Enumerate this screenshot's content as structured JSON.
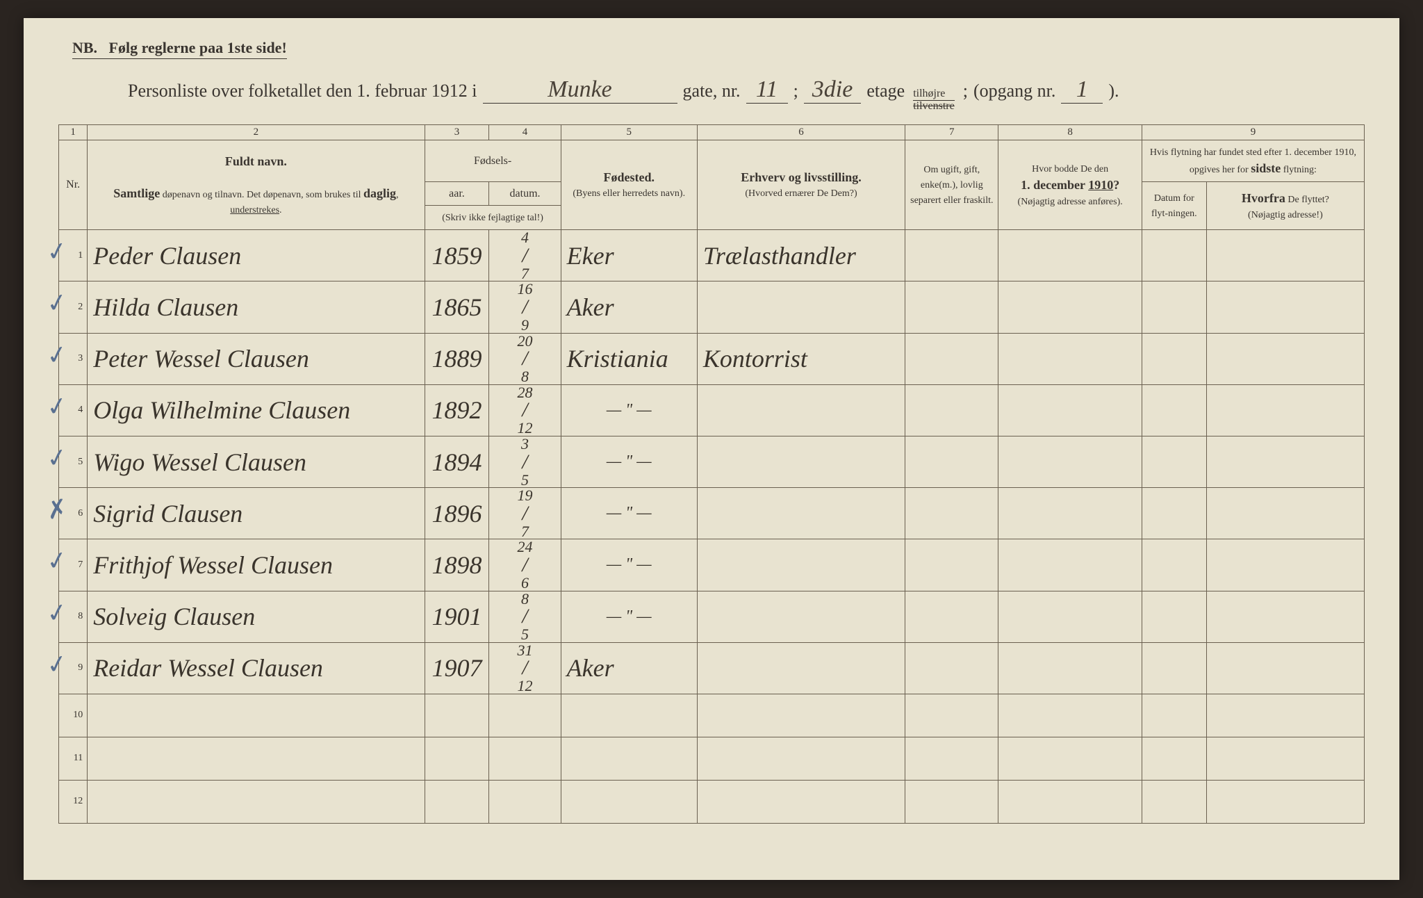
{
  "colors": {
    "paper": "#e8e3d0",
    "ink_printed": "#3a3530",
    "ink_handwritten": "#3a342c",
    "border": "#6a6050",
    "check_mark": "#5a7090",
    "background": "#2a2420"
  },
  "nb_text": "NB.   Følg reglerne paa 1ste side!",
  "title": {
    "prefix": "Personliste over folketallet den 1. februar 1912 i",
    "street": "Munke",
    "gate_label": "gate, nr.",
    "gate_nr": "11",
    "semicolon": ";",
    "etage_nr": "3die",
    "etage_label": "etage",
    "tilhojre": "tilhøjre",
    "tilvenstre": "tilvenstre",
    "opgang_label": "(opgang nr.",
    "opgang_nr": "1",
    "close": ")."
  },
  "col_numbers": [
    "1",
    "2",
    "3",
    "4",
    "5",
    "6",
    "7",
    "8",
    "9"
  ],
  "headers": {
    "nr": "Nr.",
    "name_title": "Fuldt navn.",
    "name_sub": "Samtlige døpenavn og tilnavn. Det døpenavn, som brukes til daglig, understrekes.",
    "fodsels": "Fødsels-",
    "aar": "aar.",
    "datum": "datum.",
    "skriv": "(Skriv ikke fejlagtige tal!)",
    "fodested": "Fødested.",
    "fodested_sub": "(Byens eller herredets navn).",
    "erhverv": "Erhverv og livsstilling.",
    "erhverv_sub": "(Hvorved ernærer De Dem?)",
    "marital": "Om ugift, gift, enke(m.), lovlig separert eller fraskilt.",
    "addr1910": "Hvor bodde De den 1. december 1910?",
    "addr1910_sub": "(Nøjagtig adresse anføres).",
    "col9_title": "Hvis flytning har fundet sted efter 1. december 1910, opgives her for sidste flytning:",
    "datum_flyt": "Datum for flyt-ningen.",
    "hvorfra": "Hvorfra De flyttet?",
    "hvorfra_sub": "(Nøjagtig adresse!)"
  },
  "rows": [
    {
      "n": "1",
      "check": "✓",
      "name": "Peder Clausen",
      "year": "1859",
      "date_top": "4",
      "date_bot": "7",
      "place": "Eker",
      "occ": "Trælasthandler"
    },
    {
      "n": "2",
      "check": "✓",
      "name": "Hilda Clausen",
      "year": "1865",
      "date_top": "16",
      "date_bot": "9",
      "place": "Aker",
      "occ": ""
    },
    {
      "n": "3",
      "check": "✓",
      "name": "Peter Wessel Clausen",
      "year": "1889",
      "date_top": "20",
      "date_bot": "8",
      "place": "Kristiania",
      "occ": "Kontorrist"
    },
    {
      "n": "4",
      "check": "✓",
      "name": "Olga Wilhelmine Clausen",
      "year": "1892",
      "date_top": "28",
      "date_bot": "12",
      "place": "— \" —",
      "occ": ""
    },
    {
      "n": "5",
      "check": "✓",
      "name": "Wigo Wessel Clausen",
      "year": "1894",
      "date_top": "3",
      "date_bot": "5",
      "place": "— \" —",
      "occ": ""
    },
    {
      "n": "6",
      "check": "✗",
      "name": "Sigrid Clausen",
      "year": "1896",
      "date_top": "19",
      "date_bot": "7",
      "place": "— \" —",
      "occ": ""
    },
    {
      "n": "7",
      "check": "✓",
      "name": "Frithjof Wessel Clausen",
      "year": "1898",
      "date_top": "24",
      "date_bot": "6",
      "place": "— \" —",
      "occ": ""
    },
    {
      "n": "8",
      "check": "✓",
      "name": "Solveig Clausen",
      "year": "1901",
      "date_top": "8",
      "date_bot": "5",
      "place": "— \" —",
      "occ": ""
    },
    {
      "n": "9",
      "check": "✓",
      "name": "Reidar Wessel Clausen",
      "year": "1907",
      "date_top": "31",
      "date_bot": "12",
      "place": "Aker",
      "occ": ""
    },
    {
      "n": "10",
      "check": "",
      "name": "",
      "year": "",
      "date_top": "",
      "date_bot": "",
      "place": "",
      "occ": ""
    },
    {
      "n": "11",
      "check": "",
      "name": "",
      "year": "",
      "date_top": "",
      "date_bot": "",
      "place": "",
      "occ": ""
    },
    {
      "n": "12",
      "check": "",
      "name": "",
      "year": "",
      "date_top": "",
      "date_bot": "",
      "place": "",
      "occ": ""
    }
  ]
}
